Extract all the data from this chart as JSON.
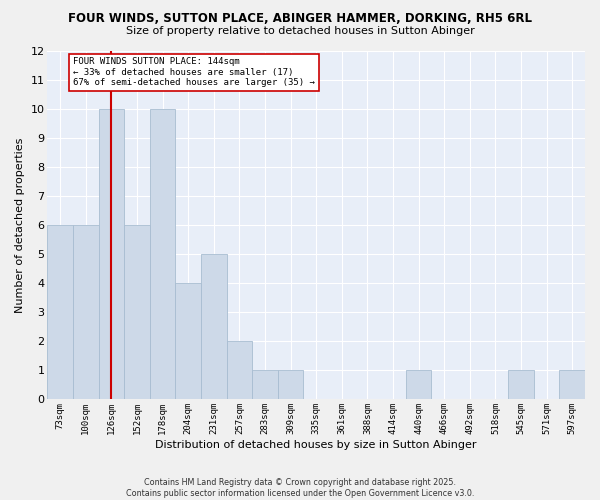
{
  "title_line1": "FOUR WINDS, SUTTON PLACE, ABINGER HAMMER, DORKING, RH5 6RL",
  "title_line2": "Size of property relative to detached houses in Sutton Abinger",
  "xlabel": "Distribution of detached houses by size in Sutton Abinger",
  "ylabel": "Number of detached properties",
  "categories": [
    "73sqm",
    "100sqm",
    "126sqm",
    "152sqm",
    "178sqm",
    "204sqm",
    "231sqm",
    "257sqm",
    "283sqm",
    "309sqm",
    "335sqm",
    "361sqm",
    "388sqm",
    "414sqm",
    "440sqm",
    "466sqm",
    "492sqm",
    "518sqm",
    "545sqm",
    "571sqm",
    "597sqm"
  ],
  "values": [
    6,
    6,
    10,
    6,
    10,
    4,
    5,
    2,
    1,
    1,
    0,
    0,
    0,
    0,
    1,
    0,
    0,
    0,
    1,
    0,
    1
  ],
  "bar_color": "#cdd9e8",
  "bar_edge_color": "#a8bdd1",
  "vline_x_index": 2,
  "vline_color": "#cc0000",
  "ylim": [
    0,
    12
  ],
  "yticks": [
    0,
    1,
    2,
    3,
    4,
    5,
    6,
    7,
    8,
    9,
    10,
    11,
    12
  ],
  "annotation_box_text": "FOUR WINDS SUTTON PLACE: 144sqm\n← 33% of detached houses are smaller (17)\n67% of semi-detached houses are larger (35) →",
  "background_color": "#e8eef8",
  "grid_color": "#ffffff",
  "footer_text": "Contains HM Land Registry data © Crown copyright and database right 2025.\nContains public sector information licensed under the Open Government Licence v3.0.",
  "fig_bg_color": "#f0f0f0",
  "fig_width": 6.0,
  "fig_height": 5.0,
  "dpi": 100
}
